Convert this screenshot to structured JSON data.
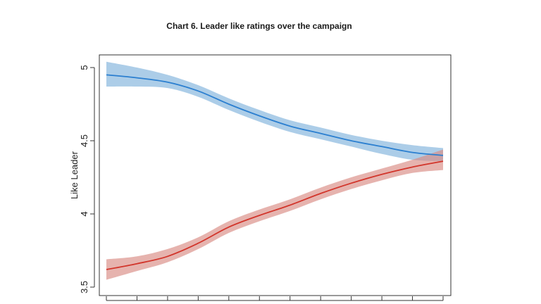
{
  "chart_data": {
    "type": "line",
    "title": "Chart 6. Leader like ratings over the campaign",
    "xlabel": "",
    "ylabel": "Like Leader",
    "xlim": [
      0,
      11
    ],
    "ylim": [
      3.5,
      5.05
    ],
    "yticks": [
      "3.5",
      "4",
      "4.5",
      "5"
    ],
    "xticks_count": 12,
    "grid": false,
    "series": [
      {
        "color": "#2b7fd0",
        "band_color": "#7fb2dc",
        "x": [
          0,
          1,
          2,
          3,
          4,
          5,
          6,
          7,
          8,
          9,
          10,
          11
        ],
        "values": [
          4.95,
          4.93,
          4.9,
          4.84,
          4.75,
          4.67,
          4.6,
          4.55,
          4.5,
          4.46,
          4.42,
          4.4
        ],
        "lower": [
          4.87,
          4.87,
          4.86,
          4.8,
          4.71,
          4.63,
          4.56,
          4.51,
          4.46,
          4.41,
          4.37,
          4.36
        ],
        "upper": [
          5.04,
          5.0,
          4.95,
          4.88,
          4.79,
          4.71,
          4.64,
          4.59,
          4.54,
          4.5,
          4.47,
          4.45
        ]
      },
      {
        "color": "#d2352b",
        "band_color": "#d98a82",
        "x": [
          0,
          1,
          2,
          3,
          4,
          5,
          6,
          7,
          8,
          9,
          10,
          11
        ],
        "values": [
          3.62,
          3.66,
          3.71,
          3.8,
          3.91,
          3.99,
          4.06,
          4.14,
          4.21,
          4.27,
          4.32,
          4.36
        ],
        "lower": [
          3.55,
          3.61,
          3.67,
          3.76,
          3.87,
          3.95,
          4.02,
          4.1,
          4.17,
          4.23,
          4.28,
          4.3
        ],
        "upper": [
          3.69,
          3.71,
          3.76,
          3.84,
          3.95,
          4.03,
          4.1,
          4.18,
          4.25,
          4.31,
          4.37,
          4.44
        ]
      }
    ]
  }
}
